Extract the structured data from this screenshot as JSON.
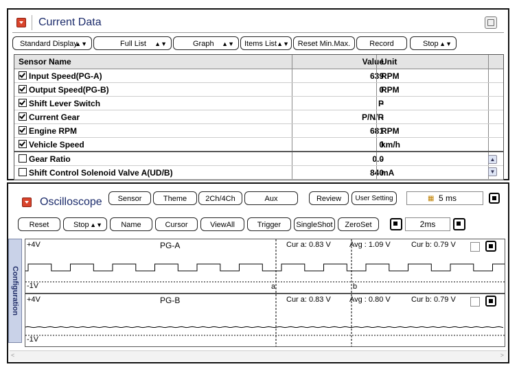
{
  "current_data": {
    "title": "Current Data",
    "toolbar": {
      "standard_display": "Standard Display",
      "full_list": "Full List",
      "graph": "Graph",
      "items_list": "Items List",
      "reset_min_max": "Reset Min.Max.",
      "record": "Record",
      "stop": "Stop"
    },
    "table": {
      "headers": {
        "name": "Sensor Name",
        "value": "Value",
        "unit": "Unit"
      },
      "rows": [
        {
          "name": "Input Speed(PG-A)",
          "value": "639",
          "unit": "RPM",
          "checked": true
        },
        {
          "name": "Output Speed(PG-B)",
          "value": "0",
          "unit": "RPM",
          "checked": true
        },
        {
          "name": "Shift Lever Switch",
          "value": "P",
          "unit": "-",
          "checked": true
        },
        {
          "name": "Current Gear",
          "value": "P/N/R",
          "unit": "-",
          "checked": true
        },
        {
          "name": "Engine RPM",
          "value": "681",
          "unit": "RPM",
          "checked": true
        },
        {
          "name": "Vehicle Speed",
          "value": "0",
          "unit": "km/h",
          "checked": true
        },
        {
          "name": "Gear Ratio",
          "value": "0.0",
          "unit": "-",
          "checked": false
        },
        {
          "name": "Shift Control Solenoid Valve A(UD/B)",
          "value": "840",
          "unit": "mA",
          "checked": false
        }
      ]
    }
  },
  "oscilloscope": {
    "title": "Oscilloscope",
    "top_buttons": {
      "sensor": "Sensor",
      "theme": "Theme",
      "ch": "2Ch/4Ch",
      "aux": "Aux",
      "review": "Review",
      "user_setting": "User Setting"
    },
    "time_display": "5 ms",
    "toolbar": {
      "reset": "Reset",
      "stop": "Stop",
      "name": "Name",
      "cursor": "Cursor",
      "view_all": "ViewAll",
      "trigger": "Trigger",
      "single_shot": "SingleShot",
      "zero_set": "ZeroSet"
    },
    "timebase": "2ms",
    "config_label": "Configuration",
    "channels": [
      {
        "name": "PG-A",
        "top_label": "+4V",
        "bottom_label": "-1V",
        "cur_a": "Cur a: 0.83 V",
        "avg": "Avg : 1.09 V",
        "cur_b": "Cur b: 0.79 V",
        "cursor_a": "a",
        "cursor_b": "b"
      },
      {
        "name": "PG-B",
        "top_label": "+4V",
        "bottom_label": "-1V",
        "cur_a": "Cur a: 0.83 V",
        "avg": "Avg : 0.80 V",
        "cur_b": "Cur b: 0.79 V"
      }
    ]
  }
}
